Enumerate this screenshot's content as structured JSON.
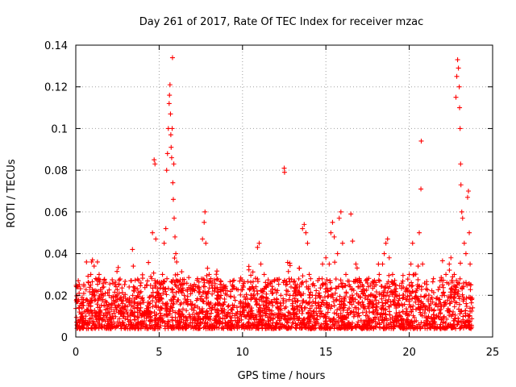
{
  "chart_data": {
    "type": "scatter",
    "title": "Day 261 of 2017, Rate Of TEC Index for receiver mzac",
    "xlabel": "GPS time / hours",
    "ylabel": "ROTI / TECUs",
    "xlim": [
      0,
      25
    ],
    "ylim": [
      0,
      0.14
    ],
    "xticks": [
      0,
      5,
      10,
      15,
      20,
      25
    ],
    "yticks": [
      0,
      0.02,
      0.04,
      0.06,
      0.08,
      0.1,
      0.12,
      0.14
    ],
    "xtick_labels": [
      "0",
      "5",
      "10",
      "15",
      "20",
      "25"
    ],
    "ytick_labels": [
      "0",
      "0.02",
      "0.04",
      "0.06",
      "0.08",
      "0.1",
      "0.12",
      "0.14"
    ],
    "grid": true,
    "marker": "+",
    "color": "#ff0000",
    "series": [
      {
        "name": "ROTI",
        "points": [
          [
            0.05,
            0.018
          ],
          [
            0.1,
            0.024
          ],
          [
            0.15,
            0.027
          ],
          [
            0.2,
            0.021
          ],
          [
            0.25,
            0.015
          ],
          [
            0.3,
            0.011
          ],
          [
            0.4,
            0.009
          ],
          [
            0.5,
            0.012
          ],
          [
            0.6,
            0.01
          ],
          [
            0.7,
            0.013
          ],
          [
            0.8,
            0.016
          ],
          [
            0.9,
            0.03
          ],
          [
            0.95,
            0.036
          ],
          [
            1.0,
            0.037
          ],
          [
            1.1,
            0.034
          ],
          [
            1.2,
            0.028
          ],
          [
            1.3,
            0.036
          ],
          [
            1.4,
            0.03
          ],
          [
            1.5,
            0.022
          ],
          [
            1.6,
            0.018
          ],
          [
            1.7,
            0.015
          ],
          [
            1.8,
            0.013
          ],
          [
            1.9,
            0.011
          ],
          [
            2.0,
            0.012
          ],
          [
            2.2,
            0.01
          ],
          [
            2.4,
            0.014
          ],
          [
            2.5,
            0.018
          ],
          [
            2.6,
            0.021
          ],
          [
            2.7,
            0.019
          ],
          [
            2.8,
            0.016
          ],
          [
            3.0,
            0.013
          ],
          [
            3.2,
            0.024
          ],
          [
            3.3,
            0.027
          ],
          [
            3.4,
            0.042
          ],
          [
            3.45,
            0.034
          ],
          [
            3.5,
            0.022
          ],
          [
            3.7,
            0.016
          ],
          [
            3.9,
            0.014
          ],
          [
            4.1,
            0.012
          ],
          [
            4.3,
            0.015
          ],
          [
            4.5,
            0.029
          ],
          [
            4.6,
            0.05
          ],
          [
            4.7,
            0.085
          ],
          [
            4.75,
            0.083
          ],
          [
            4.8,
            0.047
          ],
          [
            4.9,
            0.02
          ],
          [
            5.0,
            0.018
          ],
          [
            5.1,
            0.025
          ],
          [
            5.2,
            0.03
          ],
          [
            5.3,
            0.045
          ],
          [
            5.4,
            0.052
          ],
          [
            5.45,
            0.08
          ],
          [
            5.5,
            0.088
          ],
          [
            5.55,
            0.1
          ],
          [
            5.6,
            0.112
          ],
          [
            5.62,
            0.116
          ],
          [
            5.65,
            0.121
          ],
          [
            5.68,
            0.107
          ],
          [
            5.7,
            0.097
          ],
          [
            5.72,
            0.091
          ],
          [
            5.75,
            0.086
          ],
          [
            5.78,
            0.1
          ],
          [
            5.8,
            0.134
          ],
          [
            5.82,
            0.074
          ],
          [
            5.85,
            0.066
          ],
          [
            5.88,
            0.083
          ],
          [
            5.9,
            0.057
          ],
          [
            5.95,
            0.048
          ],
          [
            6.0,
            0.04
          ],
          [
            6.05,
            0.036
          ],
          [
            6.1,
            0.03
          ],
          [
            6.3,
            0.022
          ],
          [
            6.5,
            0.02
          ],
          [
            6.7,
            0.018
          ],
          [
            6.9,
            0.016
          ],
          [
            7.1,
            0.014
          ],
          [
            7.3,
            0.028
          ],
          [
            7.4,
            0.023
          ],
          [
            7.6,
            0.047
          ],
          [
            7.7,
            0.055
          ],
          [
            7.75,
            0.06
          ],
          [
            7.8,
            0.045
          ],
          [
            7.9,
            0.033
          ],
          [
            8.0,
            0.03
          ],
          [
            8.1,
            0.028
          ],
          [
            8.3,
            0.022
          ],
          [
            8.5,
            0.02
          ],
          [
            8.7,
            0.015
          ],
          [
            8.9,
            0.012
          ],
          [
            9.1,
            0.01
          ],
          [
            9.3,
            0.013
          ],
          [
            9.5,
            0.015
          ],
          [
            9.7,
            0.012
          ],
          [
            9.9,
            0.011
          ],
          [
            10.1,
            0.013
          ],
          [
            10.3,
            0.015
          ],
          [
            10.5,
            0.018
          ],
          [
            10.7,
            0.022
          ],
          [
            10.9,
            0.043
          ],
          [
            11.0,
            0.045
          ],
          [
            11.1,
            0.035
          ],
          [
            11.3,
            0.03
          ],
          [
            11.5,
            0.025
          ],
          [
            11.7,
            0.022
          ],
          [
            11.9,
            0.018
          ],
          [
            12.1,
            0.016
          ],
          [
            12.3,
            0.02
          ],
          [
            12.5,
            0.081
          ],
          [
            12.52,
            0.079
          ],
          [
            12.6,
            0.025
          ],
          [
            12.8,
            0.018
          ],
          [
            13.0,
            0.016
          ],
          [
            13.2,
            0.02
          ],
          [
            13.4,
            0.033
          ],
          [
            13.6,
            0.052
          ],
          [
            13.7,
            0.054
          ],
          [
            13.8,
            0.05
          ],
          [
            13.9,
            0.045
          ],
          [
            14.0,
            0.03
          ],
          [
            14.2,
            0.025
          ],
          [
            14.4,
            0.02
          ],
          [
            14.6,
            0.028
          ],
          [
            14.8,
            0.035
          ],
          [
            15.0,
            0.038
          ],
          [
            15.2,
            0.035
          ],
          [
            15.3,
            0.05
          ],
          [
            15.4,
            0.055
          ],
          [
            15.5,
            0.048
          ],
          [
            15.7,
            0.04
          ],
          [
            15.8,
            0.057
          ],
          [
            15.9,
            0.06
          ],
          [
            16.0,
            0.045
          ],
          [
            16.2,
            0.03
          ],
          [
            16.4,
            0.025
          ],
          [
            16.5,
            0.059
          ],
          [
            16.6,
            0.046
          ],
          [
            16.8,
            0.035
          ],
          [
            17.0,
            0.028
          ],
          [
            17.2,
            0.022
          ],
          [
            17.5,
            0.018
          ],
          [
            17.8,
            0.02
          ],
          [
            18.0,
            0.025
          ],
          [
            18.2,
            0.03
          ],
          [
            18.4,
            0.035
          ],
          [
            18.5,
            0.04
          ],
          [
            18.6,
            0.045
          ],
          [
            18.7,
            0.047
          ],
          [
            18.8,
            0.038
          ],
          [
            19.0,
            0.03
          ],
          [
            19.2,
            0.025
          ],
          [
            19.4,
            0.02
          ],
          [
            19.6,
            0.015
          ],
          [
            19.8,
            0.018
          ],
          [
            20.0,
            0.03
          ],
          [
            20.1,
            0.035
          ],
          [
            20.2,
            0.045
          ],
          [
            20.3,
            0.03
          ],
          [
            20.5,
            0.025
          ],
          [
            20.6,
            0.05
          ],
          [
            20.7,
            0.071
          ],
          [
            20.72,
            0.094
          ],
          [
            20.8,
            0.035
          ],
          [
            21.0,
            0.02
          ],
          [
            21.2,
            0.015
          ],
          [
            21.5,
            0.013
          ],
          [
            21.8,
            0.018
          ],
          [
            22.0,
            0.025
          ],
          [
            22.2,
            0.03
          ],
          [
            22.4,
            0.035
          ],
          [
            22.5,
            0.038
          ],
          [
            22.7,
            0.03
          ],
          [
            22.8,
            0.115
          ],
          [
            22.85,
            0.125
          ],
          [
            22.9,
            0.133
          ],
          [
            22.95,
            0.129
          ],
          [
            23.0,
            0.12
          ],
          [
            23.02,
            0.11
          ],
          [
            23.05,
            0.1
          ],
          [
            23.08,
            0.083
          ],
          [
            23.1,
            0.073
          ],
          [
            23.15,
            0.06
          ],
          [
            23.2,
            0.057
          ],
          [
            23.3,
            0.045
          ],
          [
            23.4,
            0.04
          ],
          [
            23.5,
            0.067
          ],
          [
            23.55,
            0.07
          ],
          [
            23.6,
            0.05
          ],
          [
            23.65,
            0.035
          ],
          [
            23.7,
            0.025
          ],
          [
            23.75,
            0.018
          ],
          [
            23.8,
            0.014
          ]
        ]
      }
    ],
    "noise_seed": 20170918,
    "noise_count": 2600
  }
}
